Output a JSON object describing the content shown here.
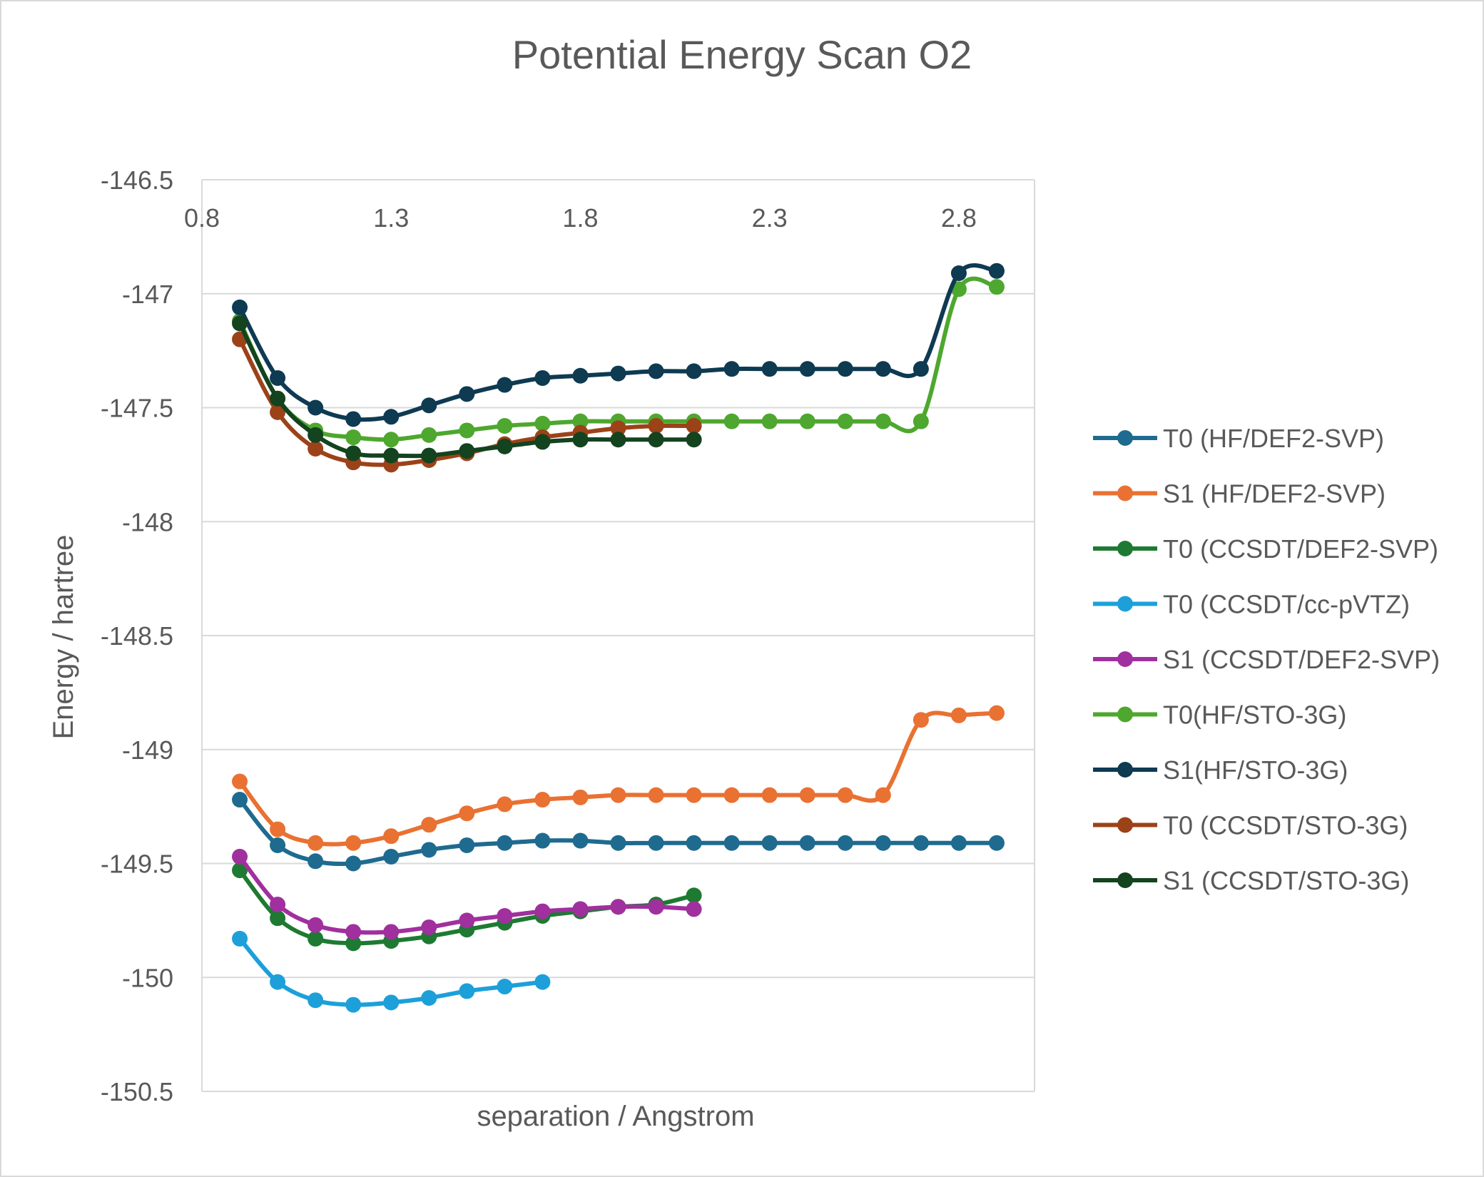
{
  "chart_data": {
    "type": "line",
    "title": "Potential Energy Scan O2",
    "xlabel": "separation / Angstrom",
    "ylabel": "Energy / hartree",
    "xlim": [
      0.8,
      3.0
    ],
    "ylim": [
      -150.5,
      -146.5
    ],
    "y_reversed": true,
    "x_axis_position": "top",
    "xticks": [
      0.8,
      1.3,
      1.8,
      2.3,
      2.8
    ],
    "xtick_labels": [
      "0.8",
      "1.3",
      "1.8",
      "2.3",
      "2.8"
    ],
    "yticks": [
      -146.5,
      -147,
      -147.5,
      -148,
      -148.5,
      -149,
      -149.5,
      -150,
      -150.5
    ],
    "ytick_labels": [
      "-146.5",
      "-147",
      "-147.5",
      "-148",
      "-148.5",
      "-149",
      "-149.5",
      "-150",
      "-150.5"
    ],
    "grid": true,
    "legend": "right",
    "series": [
      {
        "name": "T0 (HF/DEF2-SVP)",
        "color": "#1F6B8F",
        "x": [
          0.9,
          1.0,
          1.1,
          1.2,
          1.3,
          1.4,
          1.5,
          1.6,
          1.7,
          1.8,
          1.9,
          2.0,
          2.1,
          2.2,
          2.3,
          2.4,
          2.5,
          2.6,
          2.7,
          2.8,
          2.9
        ],
        "y": [
          -149.22,
          -149.42,
          -149.49,
          -149.5,
          -149.47,
          -149.44,
          -149.42,
          -149.41,
          -149.4,
          -149.4,
          -149.41,
          -149.41,
          -149.41,
          -149.41,
          -149.41,
          -149.41,
          -149.41,
          -149.41,
          -149.41,
          -149.41,
          -149.41
        ]
      },
      {
        "name": "S1 (HF/DEF2-SVP)",
        "color": "#E97132",
        "x": [
          0.9,
          1.0,
          1.1,
          1.2,
          1.3,
          1.4,
          1.5,
          1.6,
          1.7,
          1.8,
          1.9,
          2.0,
          2.1,
          2.2,
          2.3,
          2.4,
          2.5,
          2.6,
          2.7,
          2.8,
          2.9
        ],
        "y": [
          -149.14,
          -149.35,
          -149.41,
          -149.41,
          -149.38,
          -149.33,
          -149.28,
          -149.24,
          -149.22,
          -149.21,
          -149.2,
          -149.2,
          -149.2,
          -149.2,
          -149.2,
          -149.2,
          -149.2,
          -149.2,
          -148.87,
          -148.85,
          -148.84
        ]
      },
      {
        "name": "T0 (CCSDT/DEF2-SVP)",
        "color": "#1E7A32",
        "x": [
          0.9,
          1.0,
          1.1,
          1.2,
          1.3,
          1.4,
          1.5,
          1.6,
          1.7,
          1.8,
          1.9,
          2.0,
          2.1
        ],
        "y": [
          -149.53,
          -149.74,
          -149.83,
          -149.85,
          -149.84,
          -149.82,
          -149.79,
          -149.76,
          -149.73,
          -149.71,
          -149.69,
          -149.68,
          -149.64
        ]
      },
      {
        "name": "T0 (CCSDT/cc-pVTZ)",
        "color": "#1DA0D9",
        "x": [
          0.9,
          1.0,
          1.1,
          1.2,
          1.3,
          1.4,
          1.5,
          1.6,
          1.7
        ],
        "y": [
          -149.83,
          -150.02,
          -150.1,
          -150.12,
          -150.11,
          -150.09,
          -150.06,
          -150.04,
          -150.02
        ]
      },
      {
        "name": "S1 (CCSDT/DEF2-SVP)",
        "color": "#A0309E",
        "x": [
          0.9,
          1.0,
          1.1,
          1.2,
          1.3,
          1.4,
          1.5,
          1.6,
          1.7,
          1.8,
          1.9,
          2.0,
          2.1
        ],
        "y": [
          -149.47,
          -149.68,
          -149.77,
          -149.8,
          -149.8,
          -149.78,
          -149.75,
          -149.73,
          -149.71,
          -149.7,
          -149.69,
          -149.69,
          -149.7
        ]
      },
      {
        "name": "T0(HF/STO-3G)",
        "color": "#4EA72E",
        "x": [
          0.9,
          1.0,
          1.1,
          1.2,
          1.3,
          1.4,
          1.5,
          1.6,
          1.7,
          1.8,
          1.9,
          2.0,
          2.1,
          2.2,
          2.3,
          2.4,
          2.5,
          2.6,
          2.7,
          2.8,
          2.9
        ],
        "y": [
          -147.12,
          -147.46,
          -147.6,
          -147.63,
          -147.64,
          -147.62,
          -147.6,
          -147.58,
          -147.57,
          -147.56,
          -147.56,
          -147.56,
          -147.56,
          -147.56,
          -147.56,
          -147.56,
          -147.56,
          -147.56,
          -147.56,
          -146.98,
          -146.97
        ]
      },
      {
        "name": "S1(HF/STO-3G)",
        "color": "#0E3A52",
        "x": [
          0.9,
          1.0,
          1.1,
          1.2,
          1.3,
          1.4,
          1.5,
          1.6,
          1.7,
          1.8,
          1.9,
          2.0,
          2.1,
          2.2,
          2.3,
          2.4,
          2.5,
          2.6,
          2.7,
          2.8,
          2.9
        ],
        "y": [
          -147.06,
          -147.37,
          -147.5,
          -147.55,
          -147.54,
          -147.49,
          -147.44,
          -147.4,
          -147.37,
          -147.36,
          -147.35,
          -147.34,
          -147.34,
          -147.33,
          -147.33,
          -147.33,
          -147.33,
          -147.33,
          -147.33,
          -146.91,
          -146.9
        ]
      },
      {
        "name": "T0 (CCSDT/STO-3G)",
        "color": "#9C4218",
        "x": [
          0.9,
          1.0,
          1.1,
          1.2,
          1.3,
          1.4,
          1.5,
          1.6,
          1.7,
          1.8,
          1.9,
          2.0,
          2.1
        ],
        "y": [
          -147.2,
          -147.52,
          -147.68,
          -147.74,
          -147.75,
          -147.73,
          -147.7,
          -147.66,
          -147.63,
          -147.61,
          -147.59,
          -147.58,
          -147.58
        ]
      },
      {
        "name": "S1 (CCSDT/STO-3G)",
        "color": "#13431F",
        "x": [
          0.9,
          1.0,
          1.1,
          1.2,
          1.3,
          1.4,
          1.5,
          1.6,
          1.7,
          1.8,
          1.9,
          2.0,
          2.1
        ],
        "y": [
          -147.13,
          -147.46,
          -147.62,
          -147.7,
          -147.71,
          -147.71,
          -147.69,
          -147.67,
          -147.65,
          -147.64,
          -147.64,
          -147.64,
          -147.64
        ]
      }
    ],
    "colors": {
      "background": "#ffffff",
      "frame": "#d9d9d9",
      "gridline": "#d9d9d9",
      "axis_text": "#595959"
    }
  }
}
